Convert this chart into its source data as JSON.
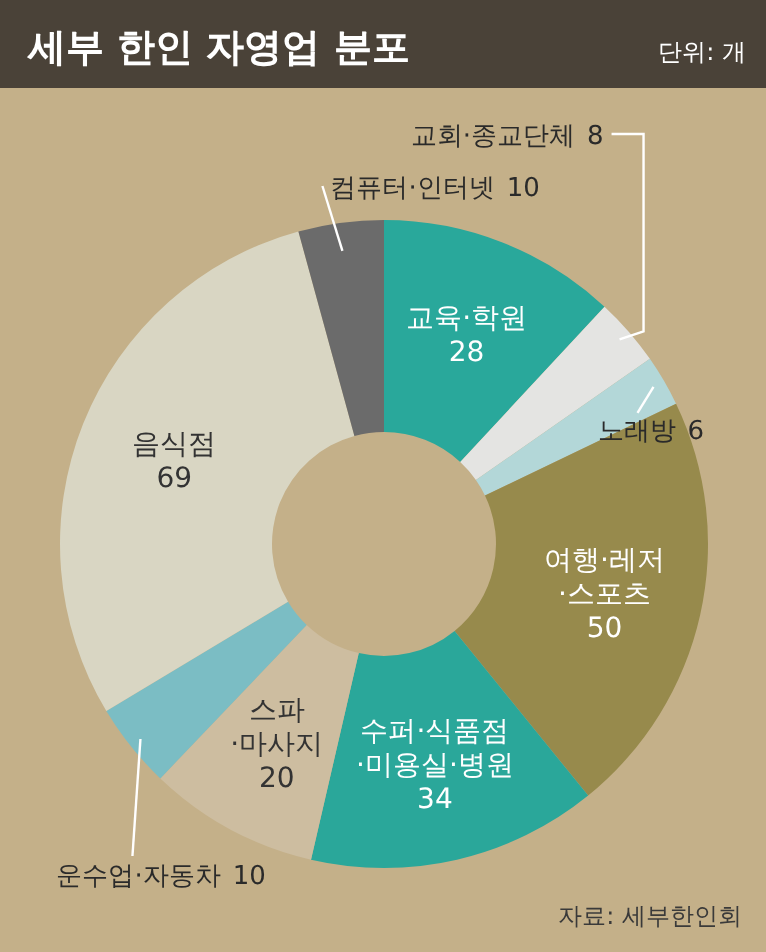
{
  "chart_data": {
    "type": "donut",
    "title": "세부 한인 자영업 분포",
    "categories": [
      "교육·학원",
      "교회·종교단체",
      "노래방",
      "여행·레저·스포츠",
      "수퍼·식품점·미용실·병원",
      "스파·마사지",
      "운수업·자동차",
      "음식점",
      "컴퓨터·인터넷"
    ],
    "values": [
      28,
      8,
      6,
      50,
      34,
      20,
      10,
      69,
      10
    ],
    "colors": [
      "#29a89b",
      "#e4e4e2",
      "#b3d7d8",
      "#978a4c",
      "#2aa79a",
      "#cdbda0",
      "#7bbdc4",
      "#d9d6c3",
      "#6b6b6b"
    ],
    "data_labels": true,
    "annotations": [
      "단위: 개",
      "자료: 세부한인회"
    ]
  }
}
